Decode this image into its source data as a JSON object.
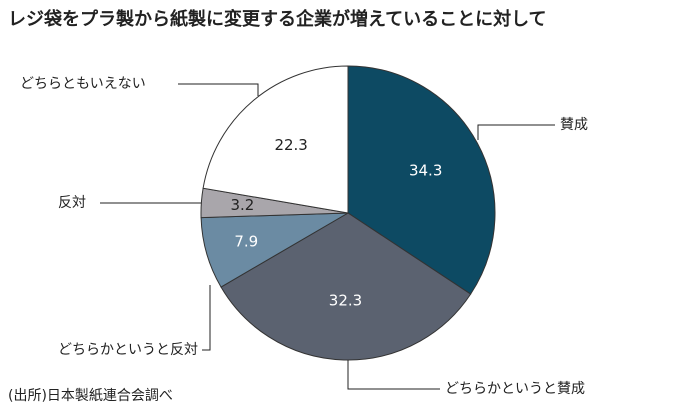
{
  "chart_data": {
    "type": "pie",
    "title": "レジ袋をプラ製から紙製に変更する企業が増えていることに対して",
    "source": "(出所)日本製紙連合会調べ",
    "categories": [
      "賛成",
      "どちらかというと賛成",
      "どちらかというと反対",
      "反対",
      "どちらともいえない"
    ],
    "values": [
      34.3,
      32.3,
      7.9,
      3.2,
      22.3
    ],
    "colors": [
      "#0d4a63",
      "#5b6270",
      "#6b8ba3",
      "#a9a6ab",
      "#ffffff"
    ]
  }
}
